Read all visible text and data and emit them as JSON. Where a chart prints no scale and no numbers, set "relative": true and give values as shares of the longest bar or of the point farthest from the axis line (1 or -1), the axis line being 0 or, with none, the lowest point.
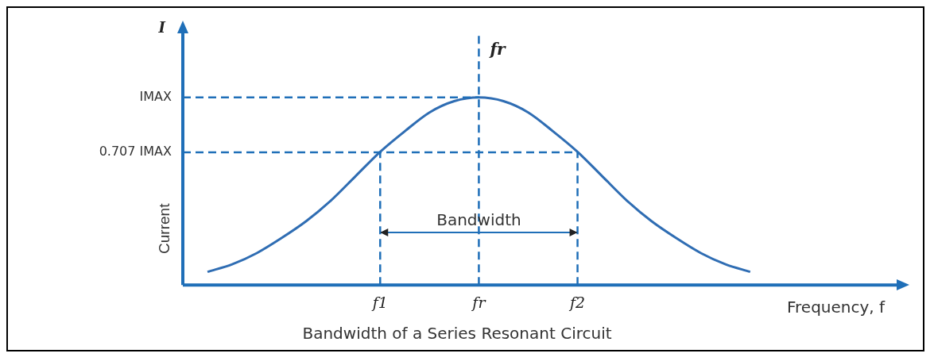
{
  "chart_data": {
    "type": "line",
    "title": "Bandwidth of a Series Resonant Circuit",
    "xlabel": "Frequency, f",
    "ylabel": "Current",
    "relative": true,
    "annotations": [
      "I",
      {
        "text": "Bandwidth",
        "x": "fr",
        "y": 0.28
      },
      {
        "text": "fr",
        "x": "fr",
        "y": 1.25
      }
    ],
    "categories": [
      null,
      null,
      null,
      null,
      null,
      null,
      null,
      "f1",
      null,
      null,
      null,
      "fr",
      null,
      null,
      null,
      "f2",
      null,
      null,
      null,
      null,
      null,
      null,
      null
    ],
    "series": [
      {
        "color": "#2f6db3",
        "values": [
          0.07,
          0.11,
          0.17,
          0.25,
          0.34,
          0.45,
          0.58,
          0.71,
          0.82,
          0.92,
          0.98,
          1,
          0.98,
          0.92,
          0.82,
          0.71,
          0.58,
          0.45,
          0.34,
          0.25,
          0.17,
          0.11,
          0.07
        ]
      }
    ],
    "ref_lines": [
      {
        "axis": "y",
        "value": 1,
        "label": "IMAX",
        "color": "#1f6fb8",
        "line_style": "dashed"
      },
      {
        "axis": "y",
        "value": 0.707,
        "label": "0.707 IMAX",
        "color": "#1f6fb8",
        "line_style": "dashed"
      },
      {
        "axis": "x",
        "value": "f1",
        "color": "#1f6fb8",
        "line_style": "dashed"
      },
      {
        "axis": "x",
        "value": "fr",
        "color": "#1f6fb8",
        "line_style": "dashed"
      },
      {
        "axis": "x",
        "value": "f2",
        "color": "#1f6fb8",
        "line_style": "dashed"
      }
    ],
    "grid": false,
    "legend": false,
    "marker": "none",
    "line_style": "solid"
  }
}
